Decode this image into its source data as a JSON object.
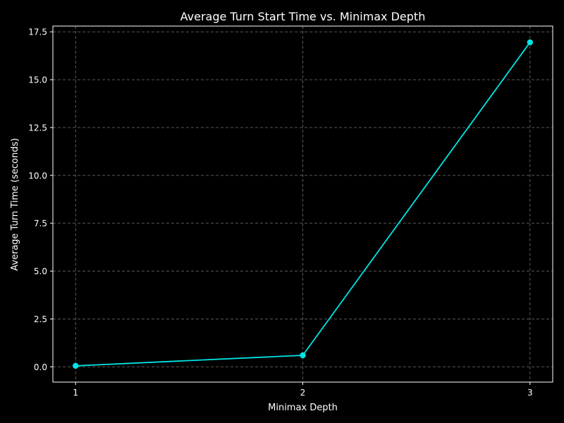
{
  "chart_data": {
    "type": "line",
    "title": "Average Turn Start Time vs. Minimax Depth",
    "xlabel": "Minimax Depth",
    "ylabel": "Average Turn Time (seconds)",
    "x": [
      1,
      2,
      3
    ],
    "series": [
      {
        "values": [
          0.05,
          0.6,
          16.95
        ]
      }
    ],
    "xticks": [
      "1",
      "2",
      "3"
    ],
    "yticks": [
      "0.0",
      "2.5",
      "5.0",
      "7.5",
      "10.0",
      "12.5",
      "15.0",
      "17.5"
    ],
    "xlim": [
      0.9,
      3.1
    ],
    "ylim": [
      -0.8,
      17.8
    ],
    "grid": true,
    "colors": {
      "background": "#000000",
      "line": "#00e5e5",
      "grid": "#666666",
      "text": "#ffffff",
      "axes": "#ffffff"
    }
  }
}
